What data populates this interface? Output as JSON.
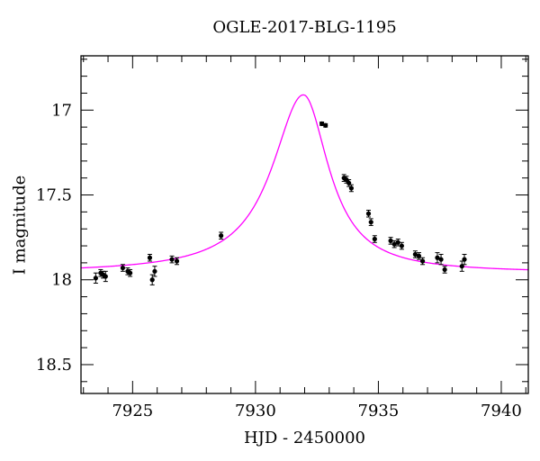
{
  "chart_data": {
    "type": "scatter",
    "title": "OGLE-2017-BLG-1195",
    "xlabel": "HJD - 2450000",
    "ylabel": "I magnitude",
    "xlim": [
      7922.9,
      7941.1
    ],
    "ylim": [
      18.67,
      16.68
    ],
    "y_inverted": true,
    "xticks": [
      7925,
      7930,
      7935,
      7940
    ],
    "yticks": [
      17,
      17.5,
      18,
      18.5
    ],
    "xtick_labels": [
      "7925",
      "7930",
      "7935",
      "7940"
    ],
    "ytick_labels": [
      "17",
      "17.5",
      "18",
      "18.5"
    ],
    "grid": false,
    "colors": {
      "model": "#ff00ff",
      "points": "#000000"
    },
    "model": {
      "name": "",
      "t0": 7931.95,
      "baseline": 17.96,
      "peak": 16.91
    },
    "series": [
      {
        "name": "",
        "kind": "points-with-errorbars",
        "points": [
          {
            "x": 7923.5,
            "y": 17.99,
            "err": 0.03
          },
          {
            "x": 7923.7,
            "y": 17.96,
            "err": 0.02
          },
          {
            "x": 7923.8,
            "y": 17.97,
            "err": 0.02
          },
          {
            "x": 7923.9,
            "y": 17.98,
            "err": 0.03
          },
          {
            "x": 7924.6,
            "y": 17.93,
            "err": 0.02
          },
          {
            "x": 7924.8,
            "y": 17.95,
            "err": 0.02
          },
          {
            "x": 7924.9,
            "y": 17.96,
            "err": 0.02
          },
          {
            "x": 7925.7,
            "y": 17.87,
            "err": 0.02
          },
          {
            "x": 7925.8,
            "y": 18.0,
            "err": 0.03
          },
          {
            "x": 7925.9,
            "y": 17.95,
            "err": 0.03
          },
          {
            "x": 7926.6,
            "y": 17.88,
            "err": 0.02
          },
          {
            "x": 7926.8,
            "y": 17.89,
            "err": 0.02
          },
          {
            "x": 7928.6,
            "y": 17.74,
            "err": 0.02
          },
          {
            "x": 7932.7,
            "y": 17.08,
            "err": 0.01
          },
          {
            "x": 7932.85,
            "y": 17.09,
            "err": 0.01
          },
          {
            "x": 7933.6,
            "y": 17.4,
            "err": 0.02
          },
          {
            "x": 7933.7,
            "y": 17.41,
            "err": 0.02
          },
          {
            "x": 7933.8,
            "y": 17.43,
            "err": 0.02
          },
          {
            "x": 7933.9,
            "y": 17.46,
            "err": 0.02
          },
          {
            "x": 7934.6,
            "y": 17.61,
            "err": 0.02
          },
          {
            "x": 7934.7,
            "y": 17.66,
            "err": 0.02
          },
          {
            "x": 7934.85,
            "y": 17.76,
            "err": 0.02
          },
          {
            "x": 7935.5,
            "y": 17.77,
            "err": 0.02
          },
          {
            "x": 7935.65,
            "y": 17.79,
            "err": 0.02
          },
          {
            "x": 7935.8,
            "y": 17.78,
            "err": 0.02
          },
          {
            "x": 7935.95,
            "y": 17.8,
            "err": 0.02
          },
          {
            "x": 7936.5,
            "y": 17.85,
            "err": 0.02
          },
          {
            "x": 7936.65,
            "y": 17.86,
            "err": 0.02
          },
          {
            "x": 7936.8,
            "y": 17.89,
            "err": 0.02
          },
          {
            "x": 7937.4,
            "y": 17.87,
            "err": 0.03
          },
          {
            "x": 7937.55,
            "y": 17.88,
            "err": 0.03
          },
          {
            "x": 7937.7,
            "y": 17.94,
            "err": 0.02
          },
          {
            "x": 7938.4,
            "y": 17.92,
            "err": 0.03
          },
          {
            "x": 7938.5,
            "y": 17.88,
            "err": 0.03
          }
        ]
      }
    ]
  }
}
